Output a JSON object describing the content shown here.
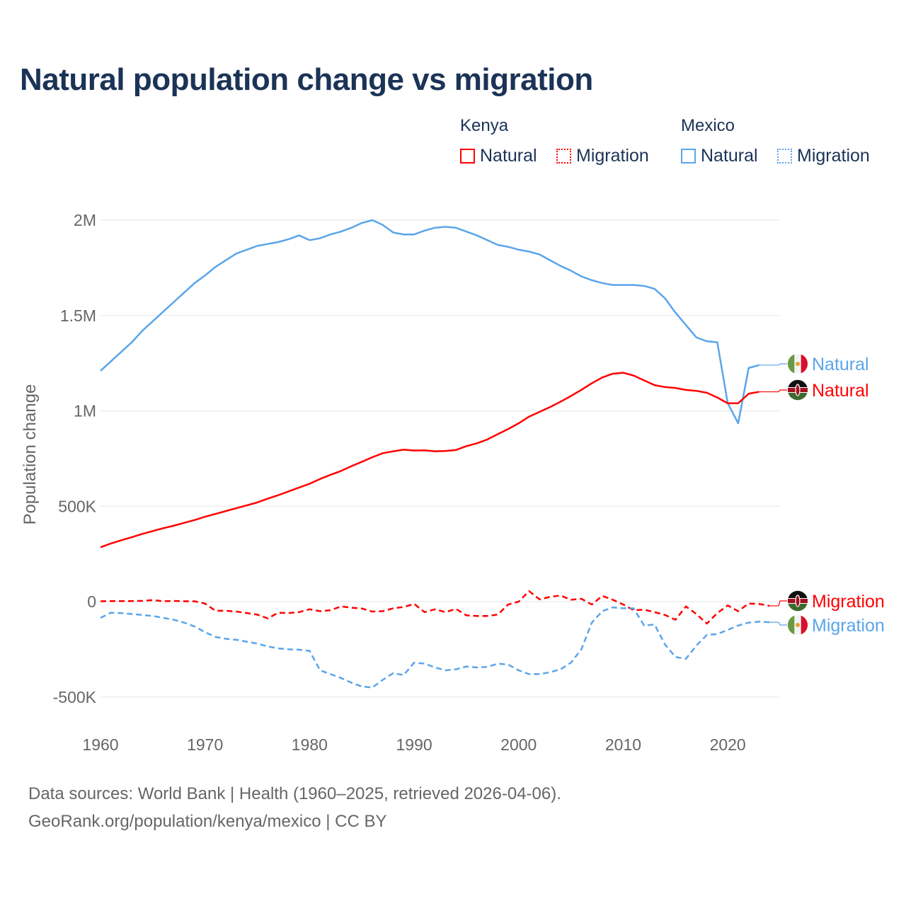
{
  "chart_data": {
    "type": "line",
    "title": "Natural population change vs migration",
    "ylabel": "Population change",
    "xlabel": "",
    "ylim": [
      -500000,
      2000000
    ],
    "xlim": [
      1960,
      2025
    ],
    "yticks": [
      {
        "v": 2000000,
        "label": "2M"
      },
      {
        "v": 1500000,
        "label": "1.5M"
      },
      {
        "v": 1000000,
        "label": "1M"
      },
      {
        "v": 500000,
        "label": "500K"
      },
      {
        "v": 0,
        "label": "0"
      },
      {
        "v": -500000,
        "label": "-500K"
      }
    ],
    "xticks": [
      1960,
      1970,
      1980,
      1990,
      2000,
      2010,
      2020
    ],
    "grid": true,
    "legend": {
      "groups": [
        {
          "name": "Kenya",
          "items": [
            "Natural",
            "Migration"
          ]
        },
        {
          "name": "Mexico",
          "items": [
            "Natural",
            "Migration"
          ]
        }
      ],
      "placement": "top-right"
    },
    "colors": {
      "Kenya": "#ff0000",
      "Mexico": "#5aa5ea"
    },
    "series": [
      {
        "name": "Mexico Natural",
        "country": "Mexico",
        "kind": "Natural",
        "label": "Natural",
        "start": 1960,
        "dashed": false,
        "values": [
          1210,
          1260,
          1310,
          1360,
          1420,
          1470,
          1520,
          1570,
          1620,
          1670,
          1710,
          1755,
          1790,
          1825,
          1845,
          1865,
          1875,
          1885,
          1900,
          1920,
          1895,
          1905,
          1925,
          1940,
          1960,
          1985,
          2000,
          1975,
          1935,
          1925,
          1925,
          1945,
          1960,
          1965,
          1960,
          1940,
          1920,
          1895,
          1870,
          1860,
          1845,
          1835,
          1820,
          1790,
          1760,
          1735,
          1705,
          1685,
          1670,
          1660,
          1660,
          1660,
          1655,
          1640,
          1590,
          1515,
          1450,
          1385,
          1365,
          1360,
          1040,
          935,
          1225,
          1240
        ]
      },
      {
        "name": "Kenya Natural",
        "country": "Kenya",
        "kind": "Natural",
        "label": "Natural",
        "start": 1960,
        "dashed": false,
        "values": [
          285,
          305,
          322,
          338,
          355,
          370,
          385,
          398,
          413,
          428,
          445,
          460,
          475,
          490,
          505,
          520,
          540,
          558,
          578,
          598,
          618,
          643,
          665,
          685,
          710,
          733,
          757,
          778,
          788,
          797,
          792,
          793,
          788,
          790,
          795,
          815,
          830,
          850,
          878,
          905,
          935,
          970,
          995,
          1020,
          1048,
          1078,
          1110,
          1145,
          1175,
          1195,
          1200,
          1185,
          1160,
          1135,
          1125,
          1120,
          1110,
          1105,
          1095,
          1070,
          1040,
          1040,
          1090,
          1100
        ]
      },
      {
        "name": "Kenya Migration",
        "country": "Kenya",
        "kind": "Migration",
        "label": "Migration",
        "start": 1960,
        "dashed": true,
        "values": [
          2,
          3,
          3,
          3,
          4,
          8,
          2,
          4,
          2,
          2,
          -10,
          -48,
          -48,
          -52,
          -60,
          -68,
          -88,
          -58,
          -60,
          -55,
          -40,
          -50,
          -45,
          -25,
          -32,
          -36,
          -52,
          -50,
          -35,
          -28,
          -12,
          -55,
          -40,
          -55,
          -38,
          -72,
          -75,
          -75,
          -68,
          -15,
          0,
          55,
          12,
          25,
          32,
          10,
          15,
          -15,
          30,
          10,
          -15,
          -45,
          -42,
          -55,
          -70,
          -95,
          -25,
          -65,
          -115,
          -60,
          -20,
          -50,
          -10,
          -12,
          -22
        ]
      },
      {
        "name": "Mexico Migration",
        "country": "Mexico",
        "kind": "Migration",
        "label": "Migration",
        "start": 1960,
        "dashed": true,
        "values": [
          -85,
          -58,
          -60,
          -65,
          -70,
          -75,
          -85,
          -95,
          -110,
          -130,
          -160,
          -185,
          -195,
          -200,
          -210,
          -220,
          -235,
          -245,
          -250,
          -252,
          -258,
          -360,
          -380,
          -400,
          -425,
          -445,
          -450,
          -410,
          -375,
          -385,
          -320,
          -325,
          -345,
          -360,
          -355,
          -340,
          -345,
          -342,
          -325,
          -330,
          -360,
          -380,
          -380,
          -370,
          -355,
          -320,
          -250,
          -110,
          -50,
          -30,
          -35,
          -35,
          -125,
          -120,
          -225,
          -290,
          -300,
          -230,
          -175,
          -170,
          -148,
          -125,
          -110,
          -105,
          -108
        ]
      }
    ],
    "value_unit": "thousands"
  },
  "footer": {
    "line1": "Data sources: World Bank | Health (1960–2025, retrieved 2026-04-06).",
    "line2": "GeoRank.org/population/kenya/mexico | CC BY"
  }
}
